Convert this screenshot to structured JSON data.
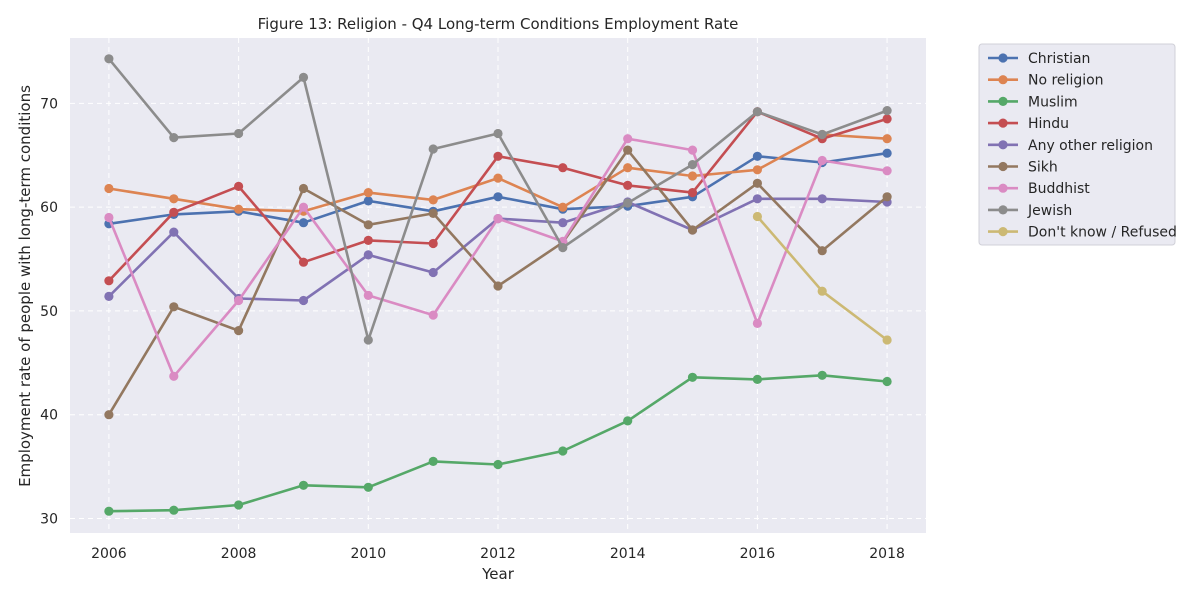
{
  "chart_data": {
    "type": "line",
    "title": "Figure 13: Religion - Q4 Long-term Conditions Employment Rate",
    "xlabel": "Year",
    "ylabel": "Employment rate of people with long-term conditions",
    "xlim": [
      2005.4,
      2018.6
    ],
    "ylim": [
      28.6,
      76.3
    ],
    "xticks": [
      2006,
      2008,
      2010,
      2012,
      2014,
      2016,
      2018
    ],
    "yticks": [
      30,
      40,
      50,
      60,
      70
    ],
    "grid": true,
    "legend_position": "outside-right",
    "series": [
      {
        "name": "Christian",
        "color": "#4c72b0",
        "x": [
          2006,
          2007,
          2008,
          2009,
          2010,
          2011,
          2012,
          2013,
          2014,
          2015,
          2016,
          2017,
          2018
        ],
        "y": [
          58.4,
          59.3,
          59.6,
          58.5,
          60.6,
          59.6,
          61.0,
          59.8,
          60.1,
          61.0,
          64.9,
          64.3,
          65.2
        ]
      },
      {
        "name": "No religion",
        "color": "#dd8452",
        "x": [
          2006,
          2007,
          2008,
          2009,
          2010,
          2011,
          2012,
          2013,
          2014,
          2015,
          2016,
          2017,
          2018
        ],
        "y": [
          61.8,
          60.8,
          59.8,
          59.6,
          61.4,
          60.7,
          62.8,
          60.0,
          63.8,
          63.0,
          63.6,
          67.0,
          66.6
        ]
      },
      {
        "name": "Muslim",
        "color": "#55a868",
        "x": [
          2006,
          2007,
          2008,
          2009,
          2010,
          2011,
          2012,
          2013,
          2014,
          2015,
          2016,
          2017,
          2018
        ],
        "y": [
          30.7,
          30.8,
          31.3,
          33.2,
          33.0,
          35.5,
          35.2,
          36.5,
          39.4,
          43.6,
          43.4,
          43.8,
          43.2
        ]
      },
      {
        "name": "Hindu",
        "color": "#c44e52",
        "x": [
          2006,
          2007,
          2008,
          2009,
          2010,
          2011,
          2012,
          2013,
          2014,
          2015,
          2016,
          2017,
          2018
        ],
        "y": [
          52.9,
          59.5,
          62.0,
          54.7,
          56.8,
          56.5,
          64.9,
          63.8,
          62.1,
          61.4,
          69.2,
          66.6,
          68.5
        ]
      },
      {
        "name": "Any other religion",
        "color": "#8172b3",
        "x": [
          2006,
          2007,
          2008,
          2009,
          2010,
          2011,
          2012,
          2013,
          2014,
          2015,
          2016,
          2017,
          2018
        ],
        "y": [
          51.4,
          57.6,
          51.2,
          51.0,
          55.4,
          53.7,
          58.9,
          58.5,
          60.5,
          57.8,
          60.8,
          60.8,
          60.5
        ]
      },
      {
        "name": "Sikh",
        "color": "#937860",
        "x": [
          2006,
          2007,
          2008,
          2009,
          2010,
          2011,
          2012,
          2013,
          2014,
          2015,
          2016,
          2017,
          2018
        ],
        "y": [
          40.0,
          50.4,
          48.1,
          61.8,
          58.3,
          59.4,
          52.4,
          56.6,
          65.5,
          57.8,
          62.3,
          55.8,
          61.0
        ]
      },
      {
        "name": "Buddhist",
        "color": "#da8bc3",
        "x": [
          2006,
          2007,
          2008,
          2009,
          2010,
          2011,
          2012,
          2013,
          2014,
          2015,
          2016,
          2017,
          2018
        ],
        "y": [
          59.0,
          43.7,
          51.0,
          60.0,
          51.5,
          49.6,
          58.9,
          56.7,
          66.6,
          65.5,
          48.8,
          64.5,
          63.5
        ]
      },
      {
        "name": "Jewish",
        "color": "#8c8c8c",
        "x": [
          2006,
          2007,
          2008,
          2009,
          2010,
          2011,
          2012,
          2013,
          2014,
          2015,
          2016,
          2017,
          2018
        ],
        "y": [
          74.3,
          66.7,
          67.1,
          72.5,
          47.2,
          65.6,
          67.1,
          56.1,
          60.4,
          64.1,
          69.2,
          67.0,
          69.3
        ]
      },
      {
        "name": "Don't know / Refused",
        "color": "#ccb974",
        "x": [
          2016,
          2017,
          2018
        ],
        "y": [
          59.1,
          51.9,
          47.2
        ]
      }
    ]
  }
}
